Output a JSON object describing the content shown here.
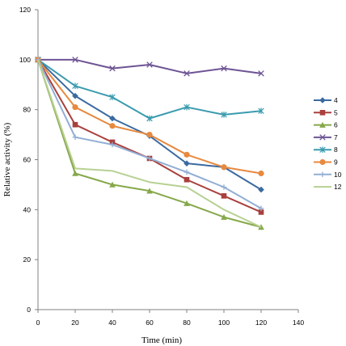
{
  "chart_data": {
    "type": "line",
    "xlabel": "Time (min)",
    "ylabel": "Relative activity (%)",
    "xlim": [
      0,
      140
    ],
    "ylim": [
      0,
      120
    ],
    "xticks": [
      0,
      20,
      40,
      60,
      80,
      100,
      120,
      140
    ],
    "yticks": [
      0,
      20,
      40,
      60,
      80,
      100,
      120
    ],
    "grid": false,
    "legend_position": "right",
    "x": [
      0,
      20,
      40,
      60,
      80,
      100,
      120
    ],
    "series": [
      {
        "name": "4",
        "color": "#3b6aa0",
        "marker": "diamond",
        "values": [
          100,
          85.5,
          76.5,
          69.5,
          58.5,
          57,
          48
        ]
      },
      {
        "name": "5",
        "color": "#a9403d",
        "marker": "square",
        "values": [
          100,
          74,
          67,
          60.5,
          52,
          45.5,
          39
        ]
      },
      {
        "name": "6",
        "color": "#86a84a",
        "marker": "triangle",
        "values": [
          100,
          54.5,
          50,
          47.5,
          42.5,
          37,
          33
        ]
      },
      {
        "name": "7",
        "color": "#6e5494",
        "marker": "x",
        "values": [
          100,
          100,
          96.5,
          98,
          94.5,
          96.5,
          94.5
        ]
      },
      {
        "name": "8",
        "color": "#3a9bae",
        "marker": "star",
        "values": [
          100,
          89.5,
          85,
          76.5,
          81,
          78,
          79.5
        ]
      },
      {
        "name": "9",
        "color": "#e7893f",
        "marker": "circle",
        "values": [
          100,
          81,
          73.5,
          70,
          62,
          57,
          54.5
        ]
      },
      {
        "name": "10",
        "color": "#92aed4",
        "marker": "plus",
        "values": [
          100,
          69,
          66,
          60.5,
          55,
          49,
          40.5
        ]
      },
      {
        "name": "12",
        "color": "#b7d192",
        "marker": "none",
        "values": [
          100,
          56.5,
          55.5,
          51,
          49,
          40,
          33
        ]
      }
    ]
  }
}
